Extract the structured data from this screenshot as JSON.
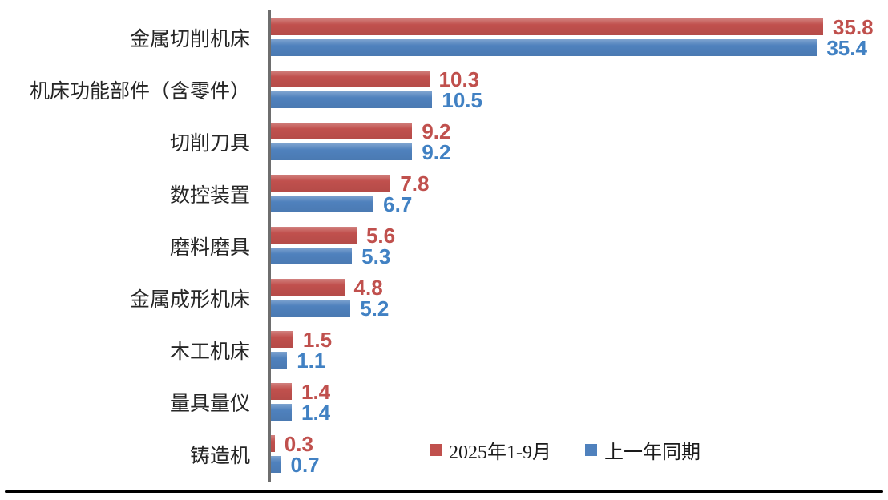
{
  "chart_data": {
    "type": "bar",
    "orientation": "horizontal",
    "title": "",
    "xlabel": "",
    "ylabel": "",
    "categories": [
      "金属切削机床",
      "机床功能部件（含零件）",
      "切削刀具",
      "数控装置",
      "磨料磨具",
      "金属成形机床",
      "木工机床",
      "量具量仪",
      "铸造机"
    ],
    "series": [
      {
        "name": "2025年1-9月",
        "color": "#C0504D",
        "values": [
          35.8,
          10.3,
          9.2,
          7.8,
          5.6,
          4.8,
          1.5,
          1.4,
          0.3
        ]
      },
      {
        "name": "上一年同期",
        "color": "#4F81BD",
        "values": [
          35.4,
          10.5,
          9.2,
          6.7,
          5.3,
          5.2,
          1.1,
          1.4,
          0.7
        ]
      }
    ],
    "xlim": [
      0,
      40
    ],
    "grid": false,
    "value_labels": true,
    "legend_position": "inside-bottom"
  },
  "colors": {
    "axis": "#6e6e6e",
    "category_text": "#262626",
    "value_text_current": "#C0504D",
    "value_text_previous": "#4181C3",
    "bottom_line": "#000000"
  }
}
